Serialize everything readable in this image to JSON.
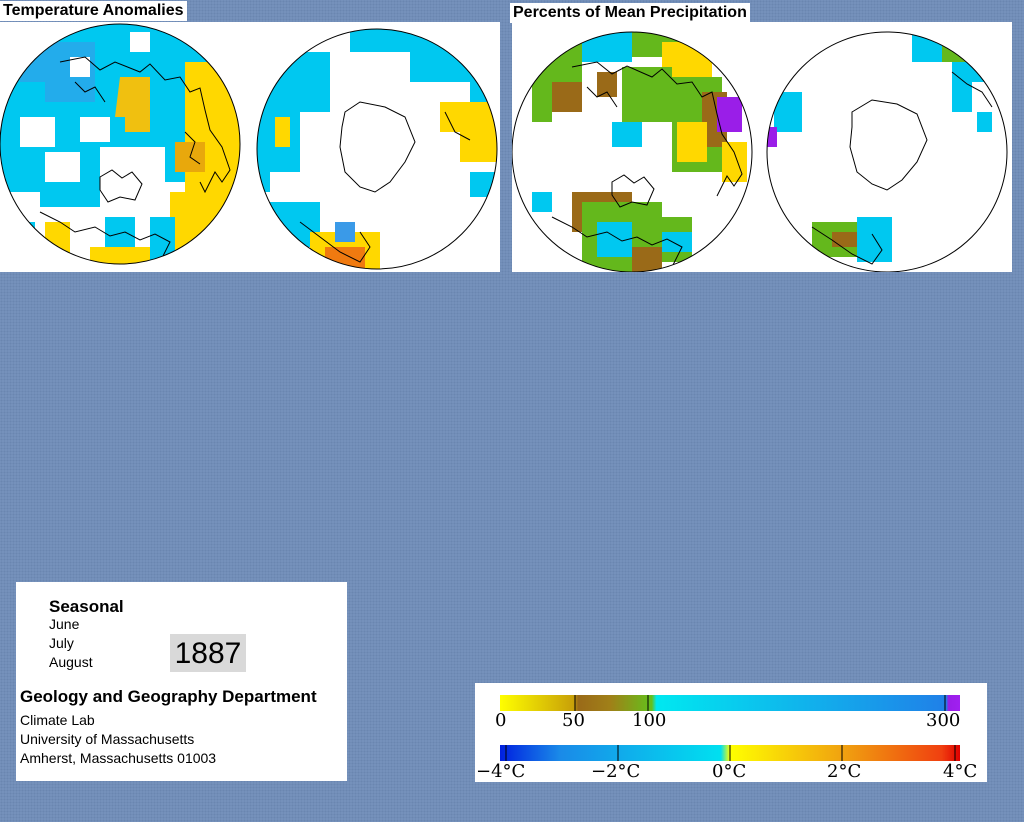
{
  "colors": {
    "background": "#7591bb",
    "cold": "#00c8f0",
    "cold_deep": "#3a9ae8",
    "warm": "#ffd800",
    "hot": "#f07a10",
    "dry_brown": "#9a6a18",
    "moist_green": "#64b81c",
    "very_wet": "#9a1ee8"
  },
  "panels": {
    "temperature": {
      "title": "Temperature Anomalies"
    },
    "precipitation": {
      "title": "Percents of Mean Precipitation"
    }
  },
  "info": {
    "season": "Seasonal",
    "months": [
      "June",
      "July",
      "August"
    ],
    "year": "1887",
    "department": "Geology and Geography Department",
    "lab": "Climate Lab",
    "university": "University of Massachusetts",
    "address": "Amherst, Massachusetts 01003"
  },
  "legends": {
    "precipitation": {
      "labels": [
        "0",
        "50",
        "100",
        "300"
      ]
    },
    "temperature": {
      "labels": [
        "−4°C",
        "−2°C",
        "0°C",
        "2°C",
        "4°C"
      ]
    }
  }
}
